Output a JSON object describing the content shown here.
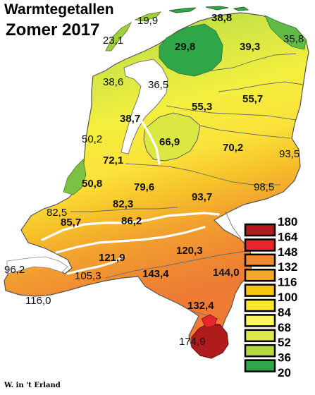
{
  "map": {
    "title_line1": "Warmtegetallen",
    "title_line2": "Zomer 2017",
    "credit": "W. in 't Erland"
  },
  "stations": [
    {
      "value": "19,9"
    },
    {
      "value": "38,8"
    },
    {
      "value": "23,1"
    },
    {
      "value": "29,8"
    },
    {
      "value": "39,3"
    },
    {
      "value": "35,8"
    },
    {
      "value": "38,6"
    },
    {
      "value": "36,5"
    },
    {
      "value": "55,3"
    },
    {
      "value": "55,7"
    },
    {
      "value": "38,7"
    },
    {
      "value": "50,2"
    },
    {
      "value": "66,9"
    },
    {
      "value": "70,2"
    },
    {
      "value": "93,5"
    },
    {
      "value": "72,1"
    },
    {
      "value": "50,8"
    },
    {
      "value": "79,6"
    },
    {
      "value": "93,7"
    },
    {
      "value": "98,5"
    },
    {
      "value": "82,3"
    },
    {
      "value": "82,5"
    },
    {
      "value": "85,7"
    },
    {
      "value": "86,2"
    },
    {
      "value": "121,9"
    },
    {
      "value": "120,3"
    },
    {
      "value": "96,2"
    },
    {
      "value": "105,3"
    },
    {
      "value": "143,4"
    },
    {
      "value": "144,0"
    },
    {
      "value": "116,0"
    },
    {
      "value": "132,4"
    },
    {
      "value": "174,9"
    }
  ],
  "legend": {
    "ticks": [
      "180",
      "164",
      "148",
      "132",
      "116",
      "100",
      "84",
      "68",
      "52",
      "36",
      "20"
    ],
    "colors": [
      "#b01c1c",
      "#e8262b",
      "#f28a30",
      "#f4a72a",
      "#f8c510",
      "#fbe82c",
      "#fdf75e",
      "#dde94a",
      "#b5d83c",
      "#2fa748"
    ]
  }
}
